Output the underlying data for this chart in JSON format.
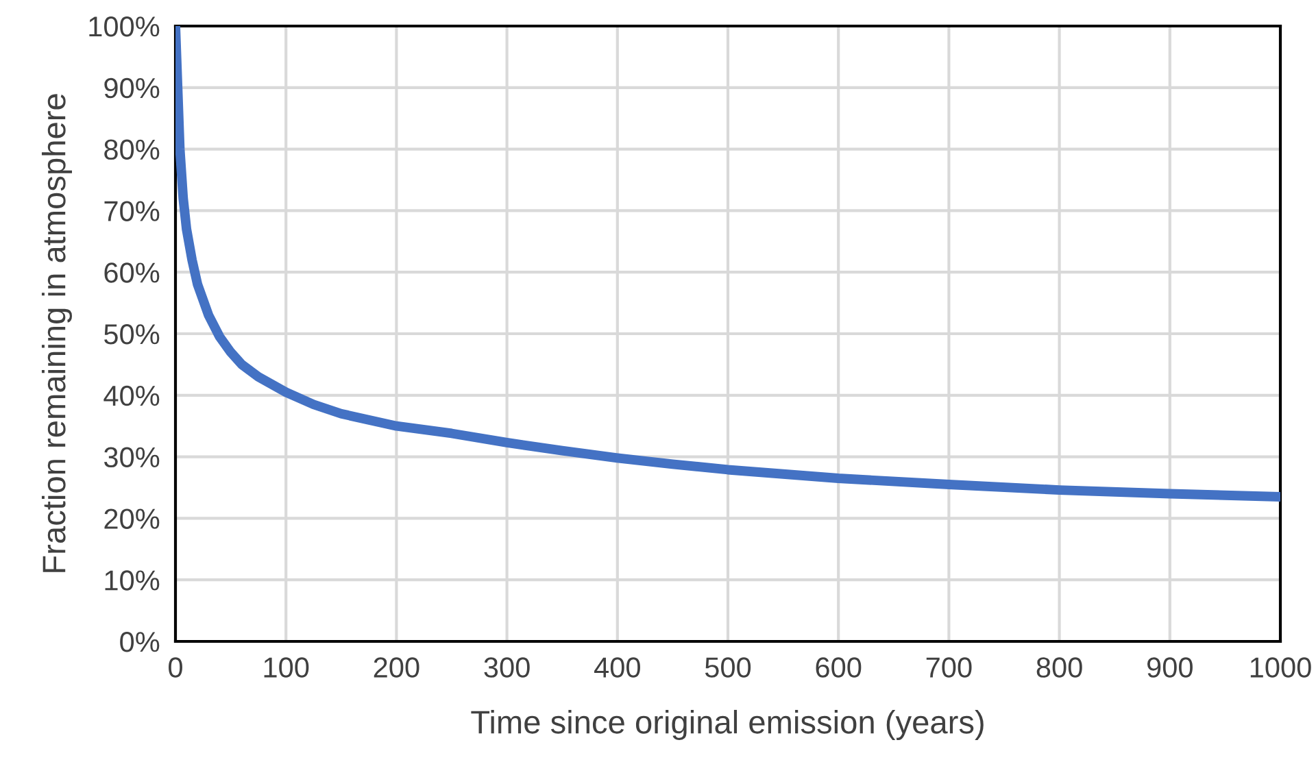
{
  "chart_data": {
    "type": "line",
    "xlabel": "Time since original emission (years)",
    "ylabel": "Fraction remaining in atmosphere",
    "x": [
      0,
      2,
      4,
      7,
      10,
      15,
      20,
      30,
      40,
      50,
      60,
      75,
      100,
      125,
      150,
      200,
      250,
      300,
      350,
      400,
      450,
      500,
      600,
      700,
      800,
      900,
      1000
    ],
    "series": [
      {
        "color": "#4472c4",
        "values": [
          100,
          90,
          80,
          72,
          67,
          62,
          58,
          53,
          49.5,
          47,
          45,
          43,
          40.5,
          38.5,
          37,
          35,
          33.8,
          32.3,
          31,
          29.8,
          28.8,
          27.9,
          26.5,
          25.5,
          24.6,
          24,
          23.5
        ]
      }
    ],
    "xlim": [
      0,
      1000
    ],
    "xticks": [
      0,
      100,
      200,
      300,
      400,
      500,
      600,
      700,
      800,
      900,
      1000
    ],
    "ylim": [
      0,
      100
    ],
    "yticks": [
      {
        "value": 0,
        "label": "0%"
      },
      {
        "value": 10,
        "label": "10%"
      },
      {
        "value": 20,
        "label": "20%"
      },
      {
        "value": 30,
        "label": "30%"
      },
      {
        "value": 40,
        "label": "40%"
      },
      {
        "value": 50,
        "label": "50%"
      },
      {
        "value": 60,
        "label": "60%"
      },
      {
        "value": 70,
        "label": "70%"
      },
      {
        "value": 80,
        "label": "80%"
      },
      {
        "value": 90,
        "label": "90%"
      },
      {
        "value": 100,
        "label": "100%"
      }
    ],
    "grid": true,
    "marker": "none",
    "line_style": "solid"
  }
}
